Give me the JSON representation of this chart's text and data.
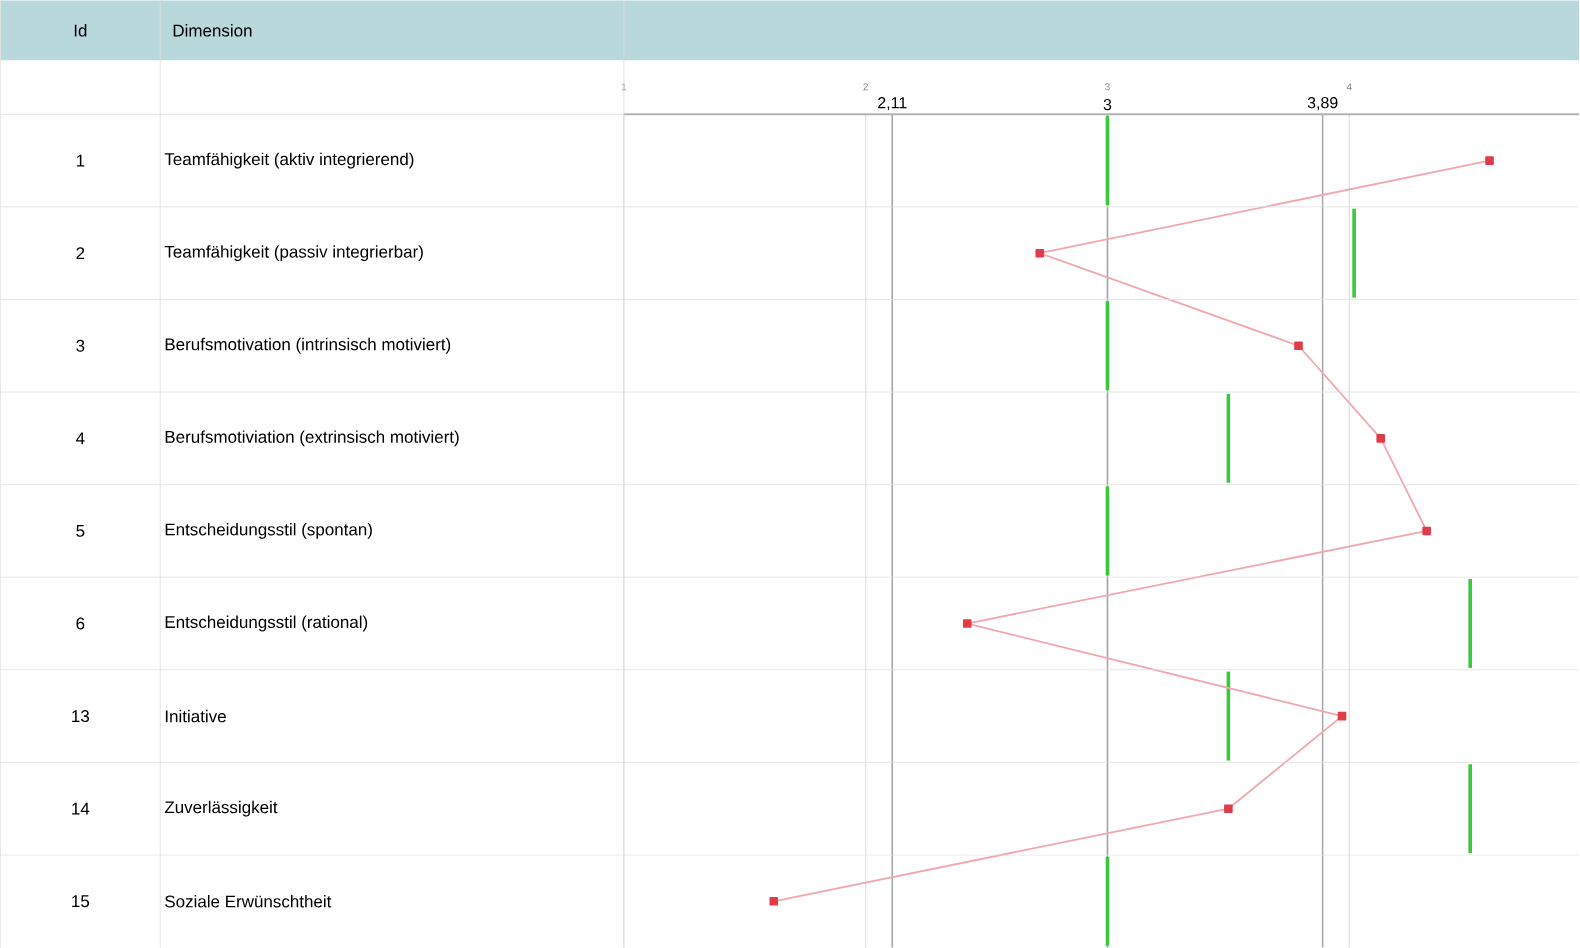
{
  "chart_data": {
    "type": "line",
    "orientation": "horizontal",
    "ylabel": "Dimension",
    "categories": [
      "Teamfähigkeit (aktiv integrierend)",
      "Teamfähigkeit (passiv integrierbar)",
      "Berufsmotivation (intrinsisch motiviert)",
      "Berufsmotiviation (extrinsisch motiviert)",
      "Entscheidungsstil (spontan)",
      "Entscheidungsstil (rational)",
      "Initiative",
      "Zuverlässigkeit",
      "Soziale Erwünschtheit"
    ],
    "series": [
      {
        "type": "box",
        "color": "#3cc83c",
        "boxes": [
          {
            "low": 3,
            "q1": 3,
            "median": 3,
            "q3": 3,
            "high": 3
          },
          {
            "low": 4.02,
            "q1": 4.02,
            "median": 4.02,
            "q3": 4.02,
            "high": 4.02
          },
          {
            "low": 3,
            "q1": 3,
            "median": 3,
            "q3": 3,
            "high": 3
          },
          {
            "low": 3.5,
            "q1": 3.5,
            "median": 3.5,
            "q3": 3.5,
            "high": 3.5
          },
          {
            "low": 3,
            "q1": 3,
            "median": 3,
            "q3": 3,
            "high": 3
          },
          {
            "low": 4.5,
            "q1": 4.5,
            "median": 4.5,
            "q3": 4.5,
            "high": 4.5
          },
          {
            "low": 3.5,
            "q1": 3.5,
            "median": 3.5,
            "q3": 3.5,
            "high": 3.5
          },
          {
            "low": 4.5,
            "q1": 4.5,
            "median": 4.5,
            "q3": 4.5,
            "high": 4.5
          },
          {
            "low": 3,
            "q1": 3,
            "median": 3,
            "q3": 3,
            "high": 3
          }
        ]
      },
      {
        "color": "#e03c48",
        "marker": "square",
        "values": [
          4.58,
          2.72,
          3.79,
          4.13,
          4.32,
          2.42,
          3.97,
          3.5,
          1.62
        ]
      }
    ],
    "xlim": [
      1,
      4.95
    ],
    "xticks": [
      {
        "value": 2.11,
        "label": "2,11"
      },
      3,
      {
        "value": 3.89,
        "label": "3,89"
      }
    ],
    "x2lim": [
      1,
      4.95
    ],
    "x2ticks": [
      1,
      2,
      3,
      4
    ],
    "grid": "x",
    "annotations": [
      "Id",
      "1",
      "2",
      "3",
      "4",
      "5",
      "6",
      "13",
      "14",
      "15"
    ]
  }
}
